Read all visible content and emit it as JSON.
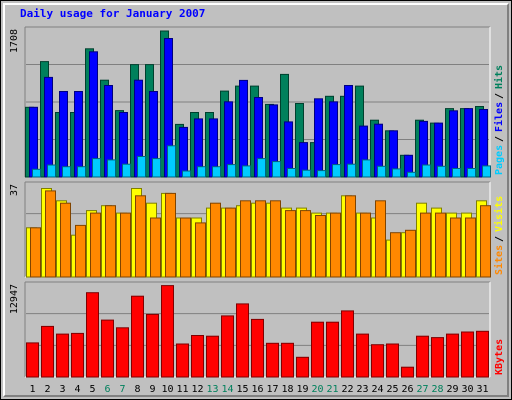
{
  "chart_data": {
    "title": "Daily usage for January 2007",
    "type": "bar",
    "categories": [
      "1",
      "2",
      "3",
      "4",
      "5",
      "6",
      "7",
      "8",
      "9",
      "10",
      "11",
      "12",
      "13",
      "14",
      "15",
      "16",
      "17",
      "18",
      "19",
      "20",
      "21",
      "22",
      "23",
      "24",
      "25",
      "26",
      "27",
      "28",
      "29",
      "30",
      "31"
    ],
    "weekend_days": [
      "6",
      "7",
      "13",
      "14",
      "20",
      "21",
      "27",
      "28"
    ],
    "charts": [
      {
        "name": "hits-files-pages",
        "ymax_label": "1708",
        "ylim": [
          0,
          1708
        ],
        "legend": [
          "Pages",
          "Files",
          "Hits"
        ],
        "series": [
          {
            "name": "Hits",
            "color": "#00805c",
            "values": [
              815,
              1350,
              754,
              754,
              1500,
              1133,
              777,
              1315,
              1315,
              1708,
              615,
              754,
              754,
              1005,
              1063,
              1063,
              849,
              1200,
              860,
              403,
              944,
              944,
              1063,
              664,
              540,
              254,
              664,
              630,
              800,
              800,
              825
            ]
          },
          {
            "name": "Files",
            "color": "#0000ff",
            "values": [
              815,
              1165,
              1000,
              1000,
              1465,
              1070,
              754,
              1133,
              1000,
              1620,
              580,
              680,
              680,
              880,
              1130,
              930,
              844,
              645,
              403,
              915,
              880,
              1070,
              595,
              618,
              540,
              254,
              650,
              630,
              775,
              800,
              790
            ]
          },
          {
            "name": "Pages",
            "color": "#00ccff",
            "values": [
              90,
              140,
              120,
              120,
              215,
              200,
              150,
              240,
              215,
              365,
              70,
              120,
              120,
              145,
              130,
              215,
              180,
              100,
              80,
              75,
              145,
              150,
              200,
              125,
              95,
              55,
              140,
              125,
              100,
              100,
              130
            ]
          }
        ]
      },
      {
        "name": "visits-sites",
        "ymax_label": "37",
        "ylim": [
          0,
          37
        ],
        "legend": [
          "Sites",
          "Visits"
        ],
        "series": [
          {
            "name": "Visits",
            "color": "#ffff00",
            "values": [
              20,
              36,
              31,
              17,
              27,
              29,
              26,
              36,
              30,
              34,
              24,
              24,
              28,
              28,
              29,
              30,
              30,
              28,
              28,
              26,
              26,
              33,
              26,
              24,
              15,
              18,
              30,
              28,
              26,
              26,
              31
            ]
          },
          {
            "name": "Sites",
            "color": "#ff8800",
            "values": [
              20,
              35,
              30,
              21,
              26,
              29,
              26,
              33,
              24,
              34,
              24,
              22,
              30,
              28,
              31,
              31,
              31,
              27,
              27,
              25,
              26,
              33,
              26,
              31,
              18,
              19,
              26,
              26,
              24,
              24,
              29
            ]
          }
        ]
      },
      {
        "name": "kbytes",
        "ymax_label": "12947",
        "ylim": [
          0,
          12947
        ],
        "legend": [
          "KBytes"
        ],
        "series": [
          {
            "name": "KBytes",
            "color": "#ff0000",
            "values": [
              4850,
              7200,
              6100,
              6200,
              12000,
              8100,
              7000,
              11500,
              8900,
              13000,
              4700,
              5900,
              5800,
              8700,
              10400,
              8200,
              4800,
              4800,
              2800,
              7800,
              7800,
              9400,
              6100,
              4600,
              4700,
              1400,
              5800,
              5600,
              6100,
              6400,
              6500
            ]
          }
        ]
      }
    ]
  },
  "colors": {
    "weekday_label": "#000000",
    "weekend_label": "#00805c"
  }
}
